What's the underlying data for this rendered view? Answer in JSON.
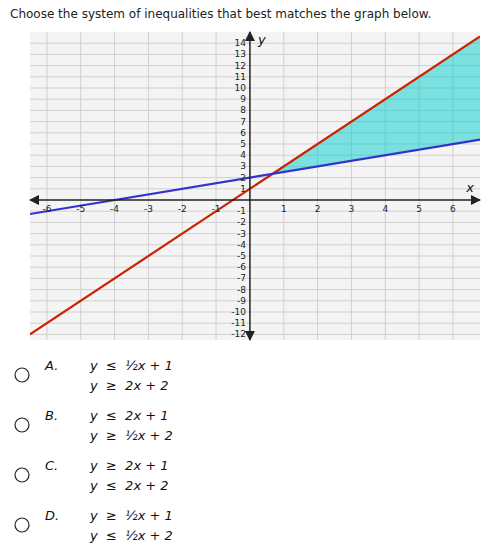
{
  "chart_data": {
    "type": "line",
    "title": "Choose the system of inequalities that best matches the graph below.",
    "xlabel": "x",
    "ylabel": "y",
    "xlim": [
      -6.5,
      6.8
    ],
    "ylim": [
      -12.5,
      15
    ],
    "xticks": [
      -6,
      -5,
      -4,
      -3,
      -2,
      -1,
      1,
      2,
      3,
      4,
      5,
      6
    ],
    "yticks": [
      -12,
      -11,
      -10,
      -9,
      -8,
      -7,
      -6,
      -5,
      -4,
      -3,
      -2,
      -1,
      1,
      2,
      3,
      4,
      5,
      6,
      7,
      8,
      9,
      10,
      11,
      12,
      13,
      14
    ],
    "grid": true,
    "series": [
      {
        "type": "line",
        "color": "#cc2200",
        "x": [
          -6.5,
          6.8
        ],
        "values": [
          -12,
          14.6
        ]
      },
      {
        "type": "line",
        "color": "#3333cc",
        "x": [
          -6.5,
          6.8
        ],
        "values": [
          -1.25,
          5.4
        ]
      },
      {
        "type": "area",
        "color": "#00cccc",
        "x": [
          0.6666666666666666,
          6.8
        ],
        "values": [
          2.3333333333333335,
          14.6
        ],
        "low": [
          2.3333333333333335,
          5.4
        ]
      }
    ],
    "annotations": [
      [
        "A.",
        "y  ≤  ½x + 1",
        "y  ≥  2x + 2"
      ],
      [
        "B.",
        "y  ≤  2x + 1",
        "y  ≥  ½x + 2"
      ],
      [
        "C.",
        "y  ≥  2x + 1",
        "y  ≤  2x + 2"
      ],
      [
        "D.",
        "y  ≥  ½x + 1",
        "y  ≤  ½x + 2"
      ]
    ]
  }
}
